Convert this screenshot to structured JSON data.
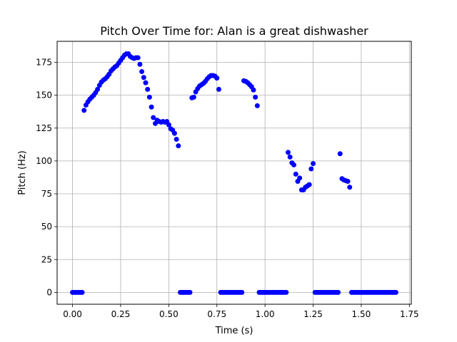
{
  "chart_data": {
    "type": "scatter",
    "title": "Pitch Over Time for: Alan is a great dishwasher",
    "xlabel": "Time (s)",
    "ylabel": "Pitch (Hz)",
    "xlim": [
      -0.08,
      1.76
    ],
    "ylim": [
      -9,
      191
    ],
    "xticks": [
      0.0,
      0.25,
      0.5,
      0.75,
      1.0,
      1.25,
      1.5,
      1.75
    ],
    "xtick_labels": [
      "0.00",
      "0.25",
      "0.50",
      "0.75",
      "1.00",
      "1.25",
      "1.50",
      "1.75"
    ],
    "yticks": [
      0,
      25,
      50,
      75,
      100,
      125,
      150,
      175
    ],
    "ytick_labels": [
      "0",
      "25",
      "50",
      "75",
      "100",
      "125",
      "150",
      "175"
    ],
    "grid": true,
    "marker_color": "#0000ff",
    "series": [
      {
        "name": "pitch",
        "x": [
          0.0,
          0.01,
          0.02,
          0.03,
          0.04,
          0.05,
          0.06,
          0.07,
          0.08,
          0.09,
          0.1,
          0.11,
          0.12,
          0.13,
          0.14,
          0.15,
          0.16,
          0.17,
          0.18,
          0.19,
          0.2,
          0.21,
          0.22,
          0.23,
          0.24,
          0.25,
          0.26,
          0.27,
          0.28,
          0.29,
          0.3,
          0.31,
          0.32,
          0.33,
          0.34,
          0.35,
          0.36,
          0.37,
          0.38,
          0.39,
          0.4,
          0.41,
          0.42,
          0.43,
          0.44,
          0.45,
          0.46,
          0.47,
          0.48,
          0.49,
          0.5,
          0.51,
          0.52,
          0.53,
          0.54,
          0.55,
          0.56,
          0.57,
          0.58,
          0.59,
          0.6,
          0.61,
          0.62,
          0.63,
          0.64,
          0.65,
          0.66,
          0.67,
          0.68,
          0.69,
          0.7,
          0.71,
          0.72,
          0.73,
          0.74,
          0.75,
          0.76,
          0.77,
          0.78,
          0.79,
          0.8,
          0.81,
          0.82,
          0.83,
          0.84,
          0.85,
          0.86,
          0.87,
          0.88,
          0.89,
          0.9,
          0.91,
          0.92,
          0.93,
          0.94,
          0.95,
          0.96,
          0.97,
          0.98,
          0.99,
          1.0,
          1.01,
          1.02,
          1.03,
          1.04,
          1.05,
          1.06,
          1.07,
          1.08,
          1.09,
          1.1,
          1.11,
          1.12,
          1.13,
          1.14,
          1.15,
          1.16,
          1.17,
          1.18,
          1.19,
          1.2,
          1.21,
          1.22,
          1.23,
          1.24,
          1.25,
          1.26,
          1.27,
          1.28,
          1.29,
          1.3,
          1.31,
          1.32,
          1.33,
          1.34,
          1.35,
          1.36,
          1.37,
          1.38,
          1.39,
          1.4,
          1.41,
          1.42,
          1.43,
          1.44,
          1.45,
          1.46,
          1.47,
          1.48,
          1.49,
          1.5,
          1.51,
          1.52,
          1.53,
          1.54,
          1.55,
          1.56,
          1.57,
          1.58,
          1.59,
          1.6,
          1.61,
          1.62,
          1.63,
          1.64,
          1.65,
          1.66,
          1.67,
          1.68
        ],
        "y": [
          0,
          0,
          0,
          0,
          0,
          0,
          138.5,
          142.5,
          145,
          147,
          148.5,
          150,
          152,
          154.5,
          157.5,
          160,
          161.5,
          162.5,
          164,
          166,
          168.5,
          170,
          171.5,
          172.5,
          174.5,
          176.5,
          178.5,
          180.5,
          181.5,
          181.5,
          179.5,
          178.5,
          178,
          178.5,
          178.5,
          173.5,
          168,
          163.5,
          159.5,
          154.5,
          148.5,
          141,
          133,
          128.5,
          131,
          130,
          129.5,
          130,
          129.5,
          130,
          127.5,
          124.5,
          123.5,
          121,
          116.5,
          111.5,
          0,
          0,
          0,
          0,
          0,
          0,
          148,
          148.5,
          152.5,
          155,
          157,
          158,
          159,
          160.5,
          162.5,
          164,
          165,
          165,
          164.5,
          163,
          154.5,
          0,
          0,
          0,
          0,
          0,
          0,
          0,
          0,
          0,
          0,
          0,
          0,
          161,
          160.5,
          159.5,
          158,
          156.5,
          154,
          148.5,
          142,
          0,
          0,
          0,
          0,
          0,
          0,
          0,
          0,
          0,
          0,
          0,
          0,
          0,
          0,
          0,
          106.5,
          103,
          98.5,
          97,
          90,
          84.5,
          87,
          78,
          78,
          80,
          81,
          82,
          94,
          98,
          0,
          0,
          0,
          0,
          0,
          0,
          0,
          0,
          0,
          0,
          0,
          0,
          0,
          105.5,
          86.5,
          85.5,
          85,
          84.5,
          80,
          0,
          0,
          0,
          0,
          0,
          0,
          0,
          0,
          0,
          0,
          0,
          0,
          0,
          0,
          0,
          0,
          0,
          0,
          0,
          0,
          0,
          0,
          0,
          0
        ]
      }
    ]
  }
}
